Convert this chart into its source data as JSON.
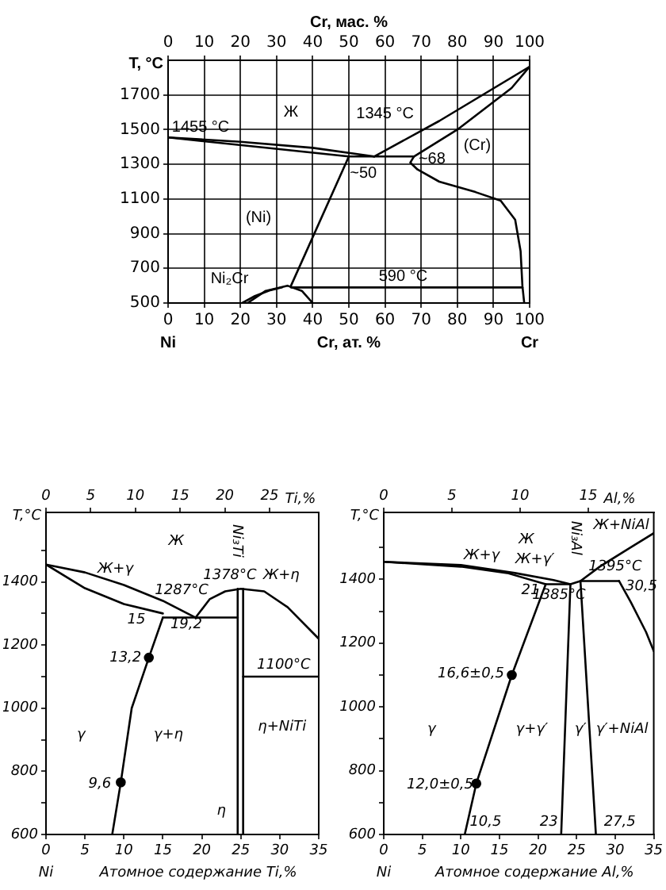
{
  "chart_data": [
    {
      "type": "line",
      "xlabel": "Cr, ат. %",
      "x2label": "Cr, мас. %",
      "ylabel": "T, °C",
      "xlim": [
        0,
        100
      ],
      "xticks": [
        0,
        10,
        20,
        30,
        40,
        50,
        60,
        70,
        80,
        90,
        100
      ],
      "x2lim": [
        0,
        100
      ],
      "x2ticks": [
        0,
        10,
        20,
        30,
        40,
        50,
        60,
        70,
        80,
        90,
        100
      ],
      "ylim": [
        500,
        1900
      ],
      "yticks": [
        500,
        700,
        900,
        1100,
        1300,
        1500,
        1700
      ],
      "grid": true,
      "legend": false,
      "marker": "none",
      "line_style": "solid",
      "series": [
        {
          "color": "#000000",
          "x": [
            0,
            20,
            40,
            57
          ],
          "values": [
            1455,
            1430,
            1395,
            1345
          ]
        },
        {
          "color": "#000000",
          "x": [
            0,
            25,
            50,
            68
          ],
          "values": [
            1455,
            1400,
            1345,
            1345
          ]
        },
        {
          "color": "#000000",
          "x": [
            57,
            75,
            100
          ],
          "values": [
            1345,
            1550,
            1863
          ]
        },
        {
          "color": "#000000",
          "x": [
            68,
            80,
            90,
            95,
            100
          ],
          "values": [
            1345,
            1500,
            1660,
            1740,
            1863
          ]
        },
        {
          "color": "#000000",
          "x": [
            68,
            67,
            69,
            75,
            85,
            92,
            96,
            97.5,
            98,
            98.5
          ],
          "values": [
            1345,
            1310,
            1270,
            1200,
            1140,
            1090,
            980,
            800,
            600,
            500
          ]
        },
        {
          "color": "#000000",
          "x": [
            50,
            34
          ],
          "values": [
            1345,
            600
          ]
        },
        {
          "color": "#000000",
          "x": [
            34,
            98
          ],
          "values": [
            590,
            590
          ]
        },
        {
          "color": "#000000",
          "x": [
            22,
            27,
            33,
            37,
            40
          ],
          "values": [
            500,
            570,
            600,
            570,
            500
          ]
        },
        {
          "color": "#000000",
          "x": [
            20.5,
            24,
            28,
            31.5
          ],
          "values": [
            500,
            540,
            572,
            590
          ]
        }
      ],
      "annotations": [
        "1455 °C",
        "Ж",
        "1345 °C",
        "~50",
        "~68",
        "(Cr)",
        "(Ni)",
        "Ni₂Cr",
        "590 °C",
        "Ni",
        "Cr"
      ]
    },
    {
      "type": "line",
      "xlabel": "Атомное содержание Ti,%",
      "x2label": "Ti,%",
      "ylabel": "T,°C",
      "xlim": [
        0,
        35
      ],
      "xticks": [
        0,
        5,
        10,
        15,
        20,
        25,
        30,
        35
      ],
      "x2lim": [
        0,
        30.5
      ],
      "x2ticks": [
        0,
        5,
        10,
        15,
        20,
        25
      ],
      "ylim": [
        600,
        1620
      ],
      "yticks": [
        600,
        {
          "value": 700,
          "label": null
        },
        800,
        {
          "value": 900,
          "label": null
        },
        1000,
        {
          "value": 1100,
          "label": null
        },
        1200,
        {
          "value": 1300,
          "label": null
        },
        1400,
        {
          "value": 1500,
          "label": null
        }
      ],
      "legend": false,
      "marker": "none",
      "line_style": "solid",
      "series": [
        {
          "color": "#000000",
          "x": [
            0,
            5,
            10,
            15,
            19.2
          ],
          "values": [
            1455,
            1430,
            1390,
            1340,
            1287
          ]
        },
        {
          "color": "#000000",
          "x": [
            0,
            5,
            10,
            15
          ],
          "values": [
            1455,
            1380,
            1330,
            1300
          ]
        },
        {
          "color": "#000000",
          "x": [
            15,
            24.6
          ],
          "values": [
            1287,
            1287
          ]
        },
        {
          "color": "#000000",
          "x": [
            19.2,
            21,
            23,
            25,
            28,
            31,
            35
          ],
          "values": [
            1287,
            1345,
            1370,
            1378,
            1370,
            1320,
            1220
          ]
        },
        {
          "color": "#000000",
          "x": [
            15,
            13.2,
            11,
            9.6,
            8.5
          ],
          "values": [
            1287,
            1160,
            1000,
            765,
            600
          ]
        },
        {
          "color": "#000000",
          "x": [
            24.6,
            24.6
          ],
          "values": [
            1378,
            600
          ]
        },
        {
          "color": "#000000",
          "x": [
            25.3,
            25.3
          ],
          "values": [
            1378,
            600
          ]
        },
        {
          "color": "#000000",
          "x": [
            25.3,
            35
          ],
          "values": [
            1100,
            1100
          ]
        },
        {
          "type": "scatter",
          "marker": "circle",
          "color": "#000000",
          "x": [
            13.2,
            9.6
          ],
          "values": [
            1160,
            765
          ]
        }
      ],
      "annotations": [
        "Ж",
        "Ж+γ",
        "1287°C",
        "1378°C",
        "Ж+η",
        "15",
        "19,2",
        "13,2",
        "9,6",
        "γ",
        "γ+η",
        "η+NiTi",
        "η",
        "1100°C",
        "Ni₃Ti",
        "Ni"
      ]
    },
    {
      "type": "line",
      "xlabel": "Атомное содержание Al,%",
      "x2label": "Al,%",
      "ylabel": "T,°C",
      "xlim": [
        0,
        35
      ],
      "xticks": [
        0,
        5,
        10,
        15,
        20,
        25,
        30,
        35
      ],
      "x2lim": [
        0,
        19.8
      ],
      "x2ticks": [
        0,
        5,
        10,
        15
      ],
      "ylim": [
        600,
        1610
      ],
      "yticks": [
        600,
        {
          "value": 700,
          "label": null
        },
        800,
        {
          "value": 900,
          "label": null
        },
        1000,
        {
          "value": 1100,
          "label": null
        },
        1200,
        {
          "value": 1300,
          "label": null
        },
        1400,
        {
          "value": 1500,
          "label": null
        }
      ],
      "legend": false,
      "marker": "none",
      "line_style": "solid",
      "series": [
        {
          "color": "#000000",
          "x": [
            0,
            10,
            17,
            22,
            24.2,
            25.5,
            28,
            32,
            35
          ],
          "values": [
            1455,
            1445,
            1420,
            1398,
            1385,
            1395,
            1440,
            1500,
            1545
          ]
        },
        {
          "color": "#000000",
          "x": [
            0,
            10,
            16,
            21,
            24.2
          ],
          "values": [
            1455,
            1440,
            1420,
            1385,
            1385
          ]
        },
        {
          "color": "#000000",
          "x": [
            25.5,
            30.5
          ],
          "values": [
            1395,
            1395
          ]
        },
        {
          "color": "#000000",
          "x": [
            21,
            16.6,
            12,
            10.5
          ],
          "values": [
            1385,
            1100,
            760,
            600
          ]
        },
        {
          "color": "#000000",
          "x": [
            24.2,
            23
          ],
          "values": [
            1385,
            600
          ]
        },
        {
          "color": "#000000",
          "x": [
            25.5,
            27.5
          ],
          "values": [
            1395,
            600
          ]
        },
        {
          "color": "#000000",
          "x": [
            30.5,
            32,
            34,
            35
          ],
          "values": [
            1395,
            1330,
            1235,
            1175
          ]
        },
        {
          "type": "scatter",
          "marker": "circle",
          "color": "#000000",
          "x": [
            16.6,
            12
          ],
          "values": [
            1100,
            760
          ]
        }
      ],
      "annotations": [
        "Ж",
        "Ж+γ",
        "Ж+γ′",
        "Ni₃Al",
        "Ж+NiAl",
        "1395°C",
        "30,5",
        "21",
        "1385°C",
        "16,6±0,5",
        "12,0±0,5",
        "10,5",
        "23",
        "27,5",
        "γ",
        "γ+γ′",
        "γ′",
        "γ′+NiAl",
        "Ni"
      ]
    }
  ]
}
